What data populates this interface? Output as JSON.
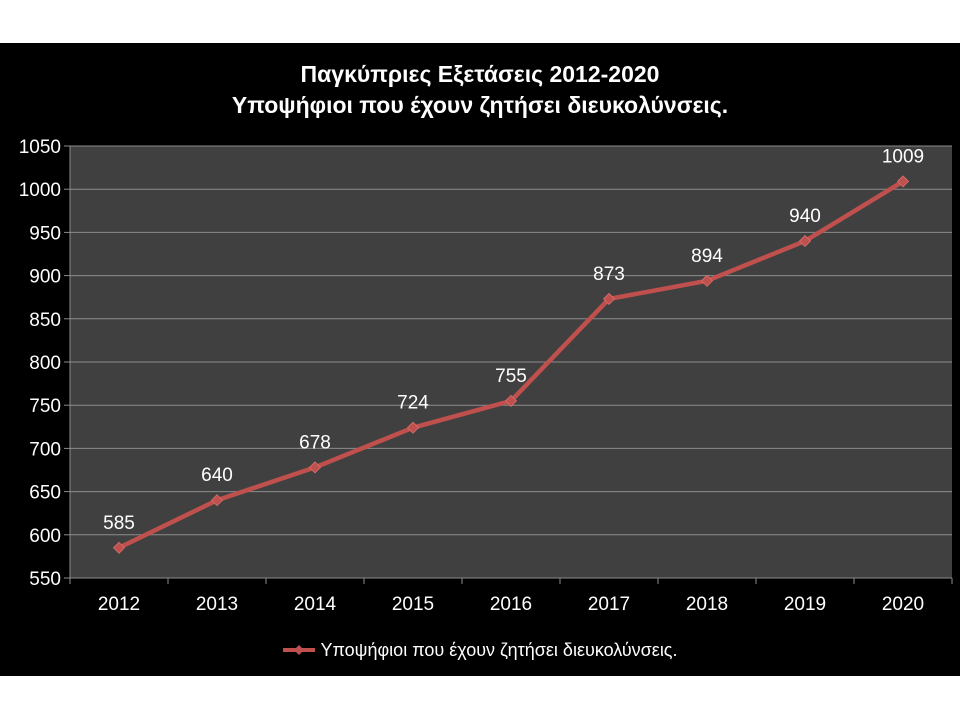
{
  "chart_data": {
    "type": "line",
    "title": [
      "Παγκύπριες Εξετάσεις 2012-2020",
      "Υποψήφιοι που έχουν ζητήσει διευκολύνσεις."
    ],
    "categories": [
      "2012",
      "2013",
      "2014",
      "2015",
      "2016",
      "2017",
      "2018",
      "2019",
      "2020"
    ],
    "series": [
      {
        "name": "Υποψήφιοι που έχουν ζητήσει διευκολύνσεις.",
        "values": [
          585,
          640,
          678,
          724,
          755,
          873,
          894,
          940,
          1009
        ],
        "color": "#c0504d"
      }
    ],
    "ylim": [
      550,
      1050
    ],
    "yticks": [
      "550",
      "600",
      "650",
      "700",
      "750",
      "800",
      "850",
      "900",
      "950",
      "1000",
      "1050"
    ],
    "grid": true,
    "legend": "bottom",
    "data_labels": [
      "585",
      "640",
      "678",
      "724",
      "755",
      "873",
      "894",
      "940",
      "1009"
    ]
  },
  "colors": {
    "background": "#000000",
    "plot_area": "#404040",
    "gridline": "#8c8c8c",
    "text": "#ffffff",
    "series": "#c0504d"
  }
}
